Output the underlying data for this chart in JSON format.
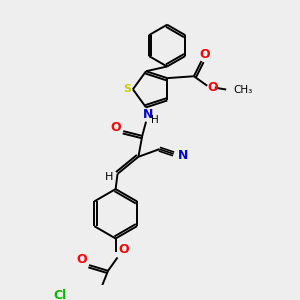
{
  "bg_color": "#eeeeee",
  "colors": {
    "S": "#cccc00",
    "N": "#0000cc",
    "O": "#ff0000",
    "Cl": "#00bb00",
    "C": "#000000"
  },
  "layout": {
    "figsize": [
      3.0,
      3.0
    ],
    "dpi": 100,
    "xlim": [
      0,
      300
    ],
    "ylim": [
      0,
      300
    ]
  }
}
